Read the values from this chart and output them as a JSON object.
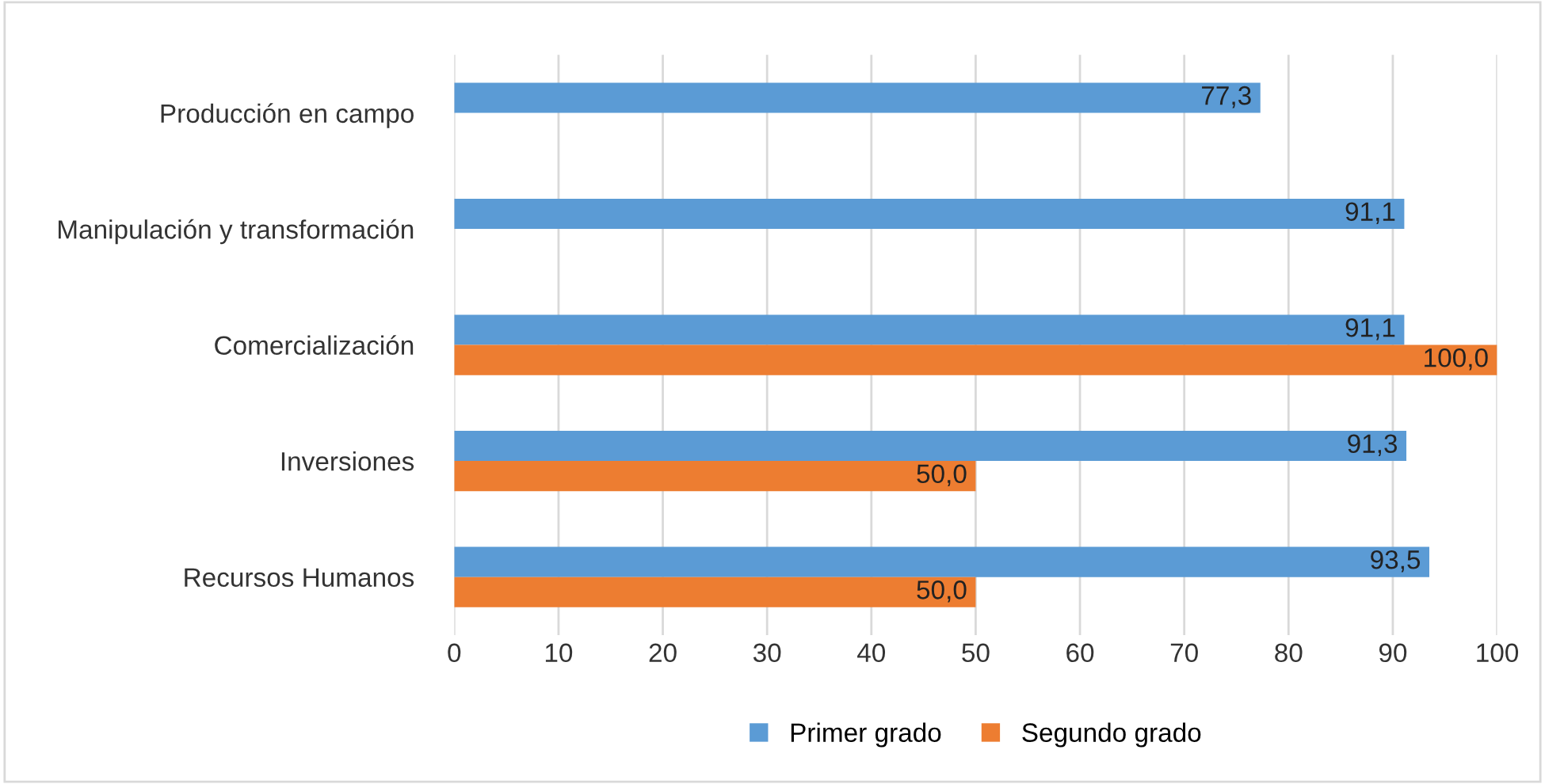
{
  "chart_data": {
    "type": "bar",
    "orientation": "horizontal",
    "categories": [
      "Producción en campo",
      "Manipulación y transformación",
      "Comercialización",
      "Inversiones",
      "Recursos Humanos"
    ],
    "series": [
      {
        "name": "Primer grado",
        "color": "#5b9bd5",
        "values": [
          77.3,
          91.1,
          91.1,
          91.3,
          93.5
        ],
        "value_labels": [
          "77,3",
          "91,1",
          "91,1",
          "91,3",
          "93,5"
        ]
      },
      {
        "name": "Segundo grado",
        "color": "#ed7d31",
        "values": [
          null,
          null,
          100.0,
          50.0,
          50.0
        ],
        "value_labels": [
          null,
          null,
          "100,0",
          "50,0",
          "50,0"
        ]
      }
    ],
    "xlim": [
      0,
      100
    ],
    "xticks": [
      0,
      10,
      20,
      30,
      40,
      50,
      60,
      70,
      80,
      90,
      100
    ],
    "grid": "x",
    "legend": "bottom"
  }
}
